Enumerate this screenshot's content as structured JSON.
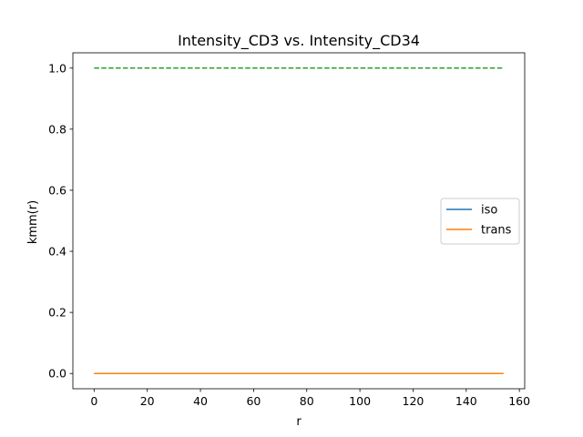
{
  "chart_data": {
    "type": "line",
    "title": "Intensity_CD3 vs. Intensity_CD34",
    "xlabel": "r",
    "ylabel": "kmm(r)",
    "xlim": [
      -8,
      162
    ],
    "ylim": [
      -0.05,
      1.05
    ],
    "xticks": [
      0,
      20,
      40,
      60,
      80,
      100,
      120,
      140,
      160
    ],
    "xtick_labels": [
      "0",
      "20",
      "40",
      "60",
      "80",
      "100",
      "120",
      "140",
      "160"
    ],
    "yticks": [
      0.0,
      0.2,
      0.4,
      0.6,
      0.8,
      1.0
    ],
    "ytick_labels": [
      "0.0",
      "0.2",
      "0.4",
      "0.6",
      "0.8",
      "1.0"
    ],
    "grid": false,
    "legend_position": "center-right",
    "series": [
      {
        "name": "iso",
        "color": "#1f77b4",
        "style": "solid",
        "x": [
          0,
          154
        ],
        "y": [
          0.0,
          0.0
        ]
      },
      {
        "name": "trans",
        "color": "#ff7f0e",
        "style": "solid",
        "x": [
          0,
          154
        ],
        "y": [
          0.0,
          0.0
        ]
      },
      {
        "color": "#2ca02c",
        "style": "dashed",
        "x": [
          0,
          154
        ],
        "y": [
          1.0,
          1.0
        ]
      }
    ]
  }
}
